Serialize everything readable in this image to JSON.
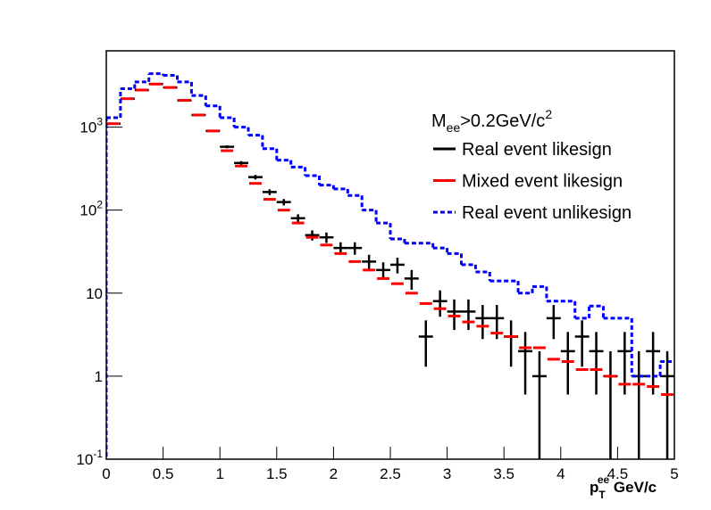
{
  "chart_data": {
    "type": "histogram",
    "log_y": true,
    "annotation": {
      "text": "M",
      "sub": "ee",
      "rest": ">0.2GeV/c",
      "sup": "2"
    },
    "x_label": {
      "base": "p",
      "sub": "T",
      "sup": "ee",
      "rest": " GeV/c"
    },
    "bins": [
      0,
      0.125,
      0.25,
      0.375,
      0.5,
      0.625,
      0.75,
      0.875,
      1,
      1.125,
      1.25,
      1.375,
      1.5,
      1.625,
      1.75,
      1.875,
      2,
      2.125,
      2.25,
      2.375,
      2.5,
      2.625,
      2.75,
      2.875,
      3,
      3.125,
      3.25,
      3.375,
      3.5,
      3.625,
      3.75,
      3.875,
      4,
      4.125,
      4.25,
      4.375,
      4.5,
      4.625,
      4.75,
      4.875,
      5
    ],
    "xlim": [
      0,
      5
    ],
    "xticks": [
      0,
      0.5,
      1,
      1.5,
      2,
      2.5,
      3,
      3.5,
      4,
      4.5,
      5
    ],
    "ylim": [
      0.1,
      8300
    ],
    "yticks": [
      {
        "value": 0.1,
        "label": "10",
        "exponent": "-1"
      },
      1,
      10,
      {
        "value": 100,
        "label": "10",
        "exponent": "2"
      },
      {
        "value": 1000,
        "label": "10",
        "exponent": "3"
      }
    ],
    "series": [
      {
        "name": "Real event likesign",
        "color": "#000000",
        "style": "points",
        "values": [
          1100,
          2200,
          2800,
          3300,
          3000,
          2100,
          1400,
          900,
          580,
          370,
          250,
          165,
          125,
          80,
          50,
          47,
          35,
          35,
          24,
          19,
          22,
          15,
          3,
          8,
          6,
          6,
          5,
          5,
          3,
          2,
          1,
          5,
          2,
          3,
          2,
          1,
          2,
          1,
          2,
          1
        ],
        "errors": [
          30,
          45,
          50,
          55,
          55,
          45,
          38,
          30,
          24,
          19,
          16,
          13,
          11,
          9,
          7,
          6.8,
          6,
          6,
          5,
          4.5,
          4.7,
          4,
          1.7,
          2.8,
          2.4,
          2.4,
          2.2,
          2.2,
          1.7,
          1.4,
          1,
          2.2,
          1.4,
          1.7,
          1.4,
          1,
          1.4,
          1,
          1.4,
          1
        ]
      },
      {
        "name": "Mixed event likesign",
        "color": "#ff0000",
        "style": "markers",
        "values": [
          1100,
          2200,
          2800,
          3300,
          3000,
          2100,
          1400,
          900,
          520,
          340,
          210,
          135,
          100,
          70,
          47,
          38,
          30,
          24,
          19,
          15,
          13,
          10,
          7.5,
          6.5,
          5.3,
          4.5,
          4,
          3.3,
          3,
          2.2,
          2.2,
          1.6,
          1.5,
          1.2,
          1.2,
          1.0,
          0.8,
          0.8,
          0.75,
          0.6
        ]
      },
      {
        "name": "Real event unlikesign",
        "color": "#0000ff",
        "style": "dashed-step",
        "values": [
          1300,
          2900,
          3500,
          4400,
          4200,
          3500,
          2400,
          1800,
          1300,
          1000,
          800,
          550,
          400,
          330,
          260,
          200,
          180,
          150,
          100,
          70,
          45,
          40,
          40,
          35,
          30,
          22,
          18,
          14,
          14,
          10,
          12,
          8,
          8,
          5,
          7,
          5,
          5,
          1,
          1,
          1.5
        ]
      }
    ]
  }
}
